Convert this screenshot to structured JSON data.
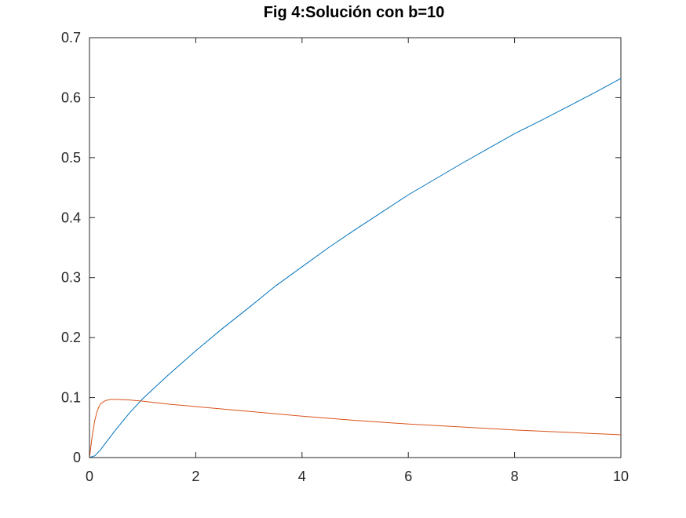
{
  "chart_data": {
    "type": "line",
    "title": "Fig 4:Solución con b=10",
    "xlabel": "",
    "ylabel": "",
    "xlim": [
      0,
      10
    ],
    "ylim": [
      0,
      0.7
    ],
    "xticks": [
      0,
      2,
      4,
      6,
      8,
      10
    ],
    "yticks": [
      0,
      0.1,
      0.2,
      0.3,
      0.4,
      0.5,
      0.6,
      0.7
    ],
    "xtick_labels": [
      "0",
      "2",
      "4",
      "6",
      "8",
      "10"
    ],
    "ytick_labels": [
      "0",
      "0.1",
      "0.2",
      "0.3",
      "0.4",
      "0.5",
      "0.6",
      "0.7"
    ],
    "grid": false,
    "legend": "none",
    "series": [
      {
        "color": "#0072bd",
        "x": [
          0,
          0.1,
          0.2,
          0.3,
          0.5,
          0.75,
          1,
          1.5,
          2,
          2.5,
          3,
          3.5,
          4,
          4.5,
          5,
          5.5,
          6,
          6.5,
          7,
          7.5,
          8,
          8.5,
          9,
          9.5,
          10
        ],
        "y": [
          0,
          0.003,
          0.012,
          0.024,
          0.047,
          0.074,
          0.098,
          0.139,
          0.178,
          0.215,
          0.25,
          0.286,
          0.318,
          0.35,
          0.38,
          0.409,
          0.438,
          0.464,
          0.49,
          0.515,
          0.54,
          0.562,
          0.585,
          0.608,
          0.632
        ]
      },
      {
        "color": "#d95319",
        "x": [
          0,
          0.05,
          0.1,
          0.15,
          0.2,
          0.3,
          0.4,
          0.5,
          0.75,
          1,
          1.5,
          2,
          3,
          4,
          5,
          6,
          7,
          8,
          9,
          10
        ],
        "y": [
          0,
          0.035,
          0.062,
          0.079,
          0.089,
          0.095,
          0.097,
          0.097,
          0.096,
          0.094,
          0.089,
          0.085,
          0.077,
          0.069,
          0.062,
          0.056,
          0.051,
          0.046,
          0.042,
          0.038
        ]
      }
    ]
  }
}
